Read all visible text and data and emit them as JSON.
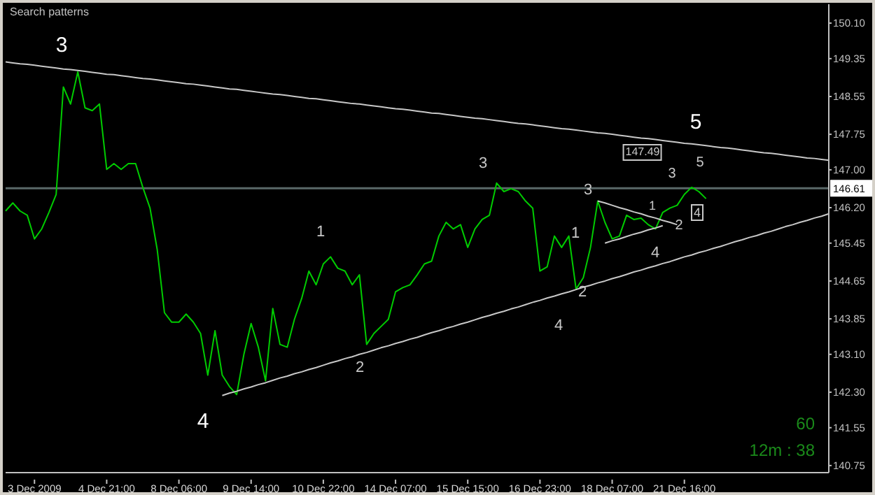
{
  "chart_data": {
    "type": "line",
    "title": "Search patterns",
    "categories": [
      null,
      null,
      null,
      null,
      "3 Dec 2009",
      null,
      null,
      null,
      null,
      null,
      null,
      null,
      null,
      null,
      "4 Dec 21:00",
      null,
      null,
      null,
      null,
      null,
      null,
      null,
      null,
      null,
      "8 Dec 06:00",
      null,
      null,
      null,
      null,
      null,
      null,
      null,
      null,
      null,
      "9 Dec 14:00",
      null,
      null,
      null,
      null,
      null,
      null,
      null,
      null,
      null,
      "10 Dec 22:00",
      null,
      null,
      null,
      null,
      null,
      null,
      null,
      null,
      null,
      "14 Dec 07:00",
      null,
      null,
      null,
      null,
      null,
      null,
      null,
      null,
      null,
      "15 Dec 15:00",
      null,
      null,
      null,
      null,
      null,
      null,
      null,
      null,
      null,
      "16 Dec 23:00",
      null,
      null,
      null,
      null,
      null,
      null,
      null,
      null,
      null,
      "18 Dec 07:00",
      null,
      null,
      null,
      null,
      null,
      null,
      null,
      null,
      null,
      "21 Dec 16:00",
      null,
      null,
      null,
      null,
      null,
      null,
      null,
      null,
      null,
      null,
      null,
      null,
      null,
      null,
      null,
      null,
      null,
      null,
      null,
      null
    ],
    "ylim": [
      140.6,
      150.5
    ],
    "yticks": [
      {
        "value": 150.1,
        "label": "150.10"
      },
      {
        "value": 149.35,
        "label": "149.35"
      },
      {
        "value": 148.55,
        "label": "148.55"
      },
      {
        "value": 147.75,
        "label": "147.75"
      },
      {
        "value": 147.0,
        "label": "147.00"
      },
      {
        "value": 146.2,
        "label": "146.20"
      },
      {
        "value": 145.45,
        "label": "145.45"
      },
      {
        "value": 144.65,
        "label": "144.65"
      },
      {
        "value": 143.85,
        "label": "143.85"
      },
      {
        "value": 143.1,
        "label": "143.10"
      },
      {
        "value": 142.3,
        "label": "142.30"
      },
      {
        "value": 141.55,
        "label": "141.55"
      },
      {
        "value": 140.75,
        "label": "140.75"
      }
    ],
    "ref_lines": [
      {
        "axis": "y",
        "value": 146.61,
        "label": "146.61",
        "color": "#5a6868"
      }
    ],
    "series": [
      {
        "color": "#00cc00",
        "values": [
          146.13,
          146.3,
          146.13,
          146.04,
          145.54,
          145.75,
          146.1,
          146.48,
          148.75,
          148.39,
          149.07,
          148.31,
          148.25,
          148.39,
          147.01,
          147.13,
          147.01,
          147.13,
          147.13,
          146.63,
          146.19,
          145.31,
          143.98,
          143.78,
          143.78,
          143.95,
          143.78,
          143.54,
          142.66,
          143.6,
          142.66,
          142.42,
          142.25,
          143.1,
          143.75,
          143.25,
          142.54,
          144.07,
          143.31,
          143.25,
          143.84,
          144.28,
          144.86,
          144.57,
          145.01,
          145.16,
          144.92,
          144.86,
          144.57,
          144.78,
          143.31,
          143.54,
          143.69,
          143.84,
          144.42,
          144.51,
          144.57,
          144.78,
          145.01,
          145.07,
          145.6,
          145.89,
          145.75,
          145.84,
          145.36,
          145.75,
          145.95,
          146.04,
          146.72,
          146.54,
          146.6,
          146.54,
          146.34,
          146.19,
          144.86,
          144.95,
          145.6,
          145.36,
          145.6,
          144.48,
          144.72,
          145.36,
          146.34,
          145.89,
          145.54,
          145.6,
          146.04,
          145.95,
          145.98,
          145.84,
          145.75,
          146.1,
          146.19,
          146.25,
          146.48,
          146.63,
          146.54,
          146.39,
          null,
          null,
          null,
          null,
          null,
          null,
          null,
          null,
          null,
          null,
          null,
          null,
          null,
          null,
          null,
          null,
          null
        ]
      },
      {
        "color": "#c8c8c8",
        "values": [
          149.28,
          149.26,
          149.24,
          149.23,
          149.21,
          149.19,
          149.17,
          149.15,
          149.13,
          149.12,
          149.1,
          149.08,
          149.06,
          149.04,
          149.02,
          149.01,
          148.99,
          148.97,
          148.95,
          148.93,
          148.92,
          148.9,
          148.88,
          148.86,
          148.84,
          148.82,
          148.81,
          148.79,
          148.77,
          148.75,
          148.73,
          148.71,
          148.7,
          148.68,
          148.66,
          148.64,
          148.62,
          148.6,
          148.59,
          148.57,
          148.55,
          148.53,
          148.51,
          148.5,
          148.48,
          148.46,
          148.44,
          148.42,
          148.4,
          148.39,
          148.37,
          148.35,
          148.33,
          148.31,
          148.29,
          148.28,
          148.26,
          148.24,
          148.22,
          148.2,
          148.19,
          148.17,
          148.15,
          148.13,
          148.11,
          148.09,
          148.08,
          148.06,
          148.04,
          148.02,
          148.0,
          147.98,
          147.97,
          147.95,
          147.93,
          147.91,
          147.89,
          147.87,
          147.86,
          147.84,
          147.82,
          147.8,
          147.78,
          147.77,
          147.75,
          147.73,
          147.71,
          147.69,
          147.67,
          147.66,
          147.64,
          147.62,
          147.6,
          147.58,
          147.56,
          147.55,
          147.53,
          147.51,
          147.49,
          147.47,
          147.46,
          147.44,
          147.42,
          147.4,
          147.38,
          147.36,
          147.35,
          147.33,
          147.31,
          147.29,
          147.27,
          147.25,
          147.24,
          147.22,
          147.2
        ]
      },
      {
        "color": "#c8c8c8",
        "values": [
          null,
          null,
          null,
          null,
          null,
          null,
          null,
          null,
          null,
          null,
          null,
          null,
          null,
          null,
          null,
          null,
          null,
          null,
          null,
          null,
          null,
          null,
          null,
          null,
          null,
          null,
          null,
          null,
          null,
          null,
          142.23,
          142.28,
          142.32,
          142.37,
          142.41,
          142.46,
          142.5,
          142.55,
          142.6,
          142.64,
          142.69,
          142.73,
          142.78,
          142.82,
          142.87,
          142.92,
          142.96,
          143.01,
          143.05,
          143.1,
          143.14,
          143.19,
          143.24,
          143.28,
          143.33,
          143.37,
          143.42,
          143.46,
          143.51,
          143.56,
          143.6,
          143.65,
          143.69,
          143.74,
          143.78,
          143.83,
          143.88,
          143.92,
          143.97,
          144.01,
          144.06,
          144.1,
          144.15,
          144.2,
          144.24,
          144.29,
          144.33,
          144.38,
          144.42,
          144.47,
          144.52,
          144.56,
          144.61,
          144.65,
          144.7,
          144.74,
          144.79,
          144.84,
          144.88,
          144.93,
          144.97,
          145.02,
          145.06,
          145.11,
          145.16,
          145.2,
          145.25,
          145.29,
          145.34,
          145.38,
          145.43,
          145.48,
          145.52,
          145.57,
          145.61,
          145.66,
          145.7,
          145.75,
          145.8,
          145.84,
          145.89,
          145.93,
          145.98,
          146.02,
          146.07
        ]
      },
      {
        "color": "#c8c8c8",
        "values": [
          null,
          null,
          null,
          null,
          null,
          null,
          null,
          null,
          null,
          null,
          null,
          null,
          null,
          null,
          null,
          null,
          null,
          null,
          null,
          null,
          null,
          null,
          null,
          null,
          null,
          null,
          null,
          null,
          null,
          null,
          null,
          null,
          null,
          null,
          null,
          null,
          null,
          null,
          null,
          null,
          null,
          null,
          null,
          null,
          null,
          null,
          null,
          null,
          null,
          null,
          null,
          null,
          null,
          null,
          null,
          null,
          null,
          null,
          null,
          null,
          null,
          null,
          null,
          null,
          null,
          null,
          null,
          null,
          null,
          null,
          null,
          null,
          null,
          null,
          null,
          null,
          null,
          null,
          null,
          null,
          null,
          null,
          146.34,
          146.3,
          146.25,
          146.2,
          146.16,
          146.11,
          146.07,
          146.02,
          145.98,
          145.93,
          145.89,
          145.84,
          null,
          null,
          null,
          null,
          null,
          null,
          null,
          null,
          null,
          null,
          null,
          null,
          null,
          null,
          null,
          null,
          null,
          null,
          null,
          null,
          null
        ]
      },
      {
        "color": "#c8c8c8",
        "values": [
          null,
          null,
          null,
          null,
          null,
          null,
          null,
          null,
          null,
          null,
          null,
          null,
          null,
          null,
          null,
          null,
          null,
          null,
          null,
          null,
          null,
          null,
          null,
          null,
          null,
          null,
          null,
          null,
          null,
          null,
          null,
          null,
          null,
          null,
          null,
          null,
          null,
          null,
          null,
          null,
          null,
          null,
          null,
          null,
          null,
          null,
          null,
          null,
          null,
          null,
          null,
          null,
          null,
          null,
          null,
          null,
          null,
          null,
          null,
          null,
          null,
          null,
          null,
          null,
          null,
          null,
          null,
          null,
          null,
          null,
          null,
          null,
          null,
          null,
          null,
          null,
          null,
          null,
          null,
          null,
          null,
          null,
          null,
          145.45,
          145.5,
          145.54,
          145.59,
          145.64,
          145.68,
          145.73,
          145.77,
          145.82,
          null,
          null,
          null,
          null,
          null,
          null,
          null,
          null,
          null,
          null,
          null,
          null,
          null,
          null,
          null,
          null,
          null,
          null,
          null,
          null,
          null,
          null,
          null
        ]
      }
    ],
    "annotations": [
      "3",
      "4",
      "5",
      "1",
      "2",
      "3",
      "4",
      "1",
      "2",
      "3",
      "1",
      {
        "text": "2",
        "y": 145.84
      },
      "4",
      "3",
      "5",
      "4",
      "147.49",
      "60",
      "12m : 38"
    ]
  }
}
